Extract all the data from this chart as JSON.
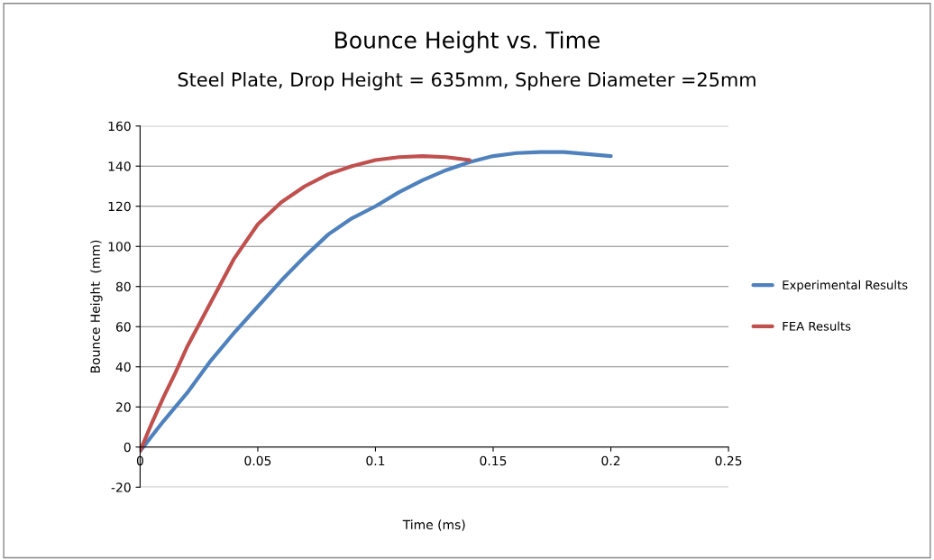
{
  "chart_data": {
    "type": "line",
    "title": "Bounce Height vs. Time",
    "subtitle": "Steel Plate, Drop Height = 635mm, Sphere Diameter =25mm",
    "xlabel": "Time (ms)",
    "ylabel": "Bounce Height  (mm)",
    "xlim": [
      0,
      0.25
    ],
    "xticks": [
      0,
      0.05,
      0.1,
      0.15,
      0.2,
      0.25
    ],
    "ylim": [
      -20,
      160
    ],
    "yticks": [
      -20,
      0,
      20,
      40,
      60,
      80,
      100,
      120,
      140,
      160
    ],
    "grid": "y",
    "legend": "right",
    "marker": "none",
    "line_style": "solid",
    "series": [
      {
        "name": "Experimental Results",
        "color": "#4f81bd",
        "x": [
          0,
          0.01,
          0.02,
          0.03,
          0.04,
          0.05,
          0.06,
          0.07,
          0.08,
          0.09,
          0.1,
          0.11,
          0.12,
          0.13,
          0.14,
          0.15,
          0.16,
          0.17,
          0.18,
          0.19,
          0.2
        ],
        "values": [
          -2,
          13,
          27,
          43,
          57,
          70,
          83,
          95,
          106,
          114,
          120,
          127,
          133,
          138,
          142,
          145,
          146.5,
          147,
          147,
          146,
          145
        ]
      },
      {
        "name": "FEA Results",
        "color": "#c0504d",
        "x": [
          0,
          0.005,
          0.01,
          0.015,
          0.02,
          0.03,
          0.04,
          0.05,
          0.06,
          0.07,
          0.08,
          0.09,
          0.1,
          0.11,
          0.12,
          0.13,
          0.14
        ],
        "values": [
          -2,
          12,
          25,
          37,
          50,
          72,
          94,
          111,
          122,
          130,
          136,
          140,
          143,
          144.5,
          145,
          144.5,
          143
        ]
      }
    ]
  }
}
